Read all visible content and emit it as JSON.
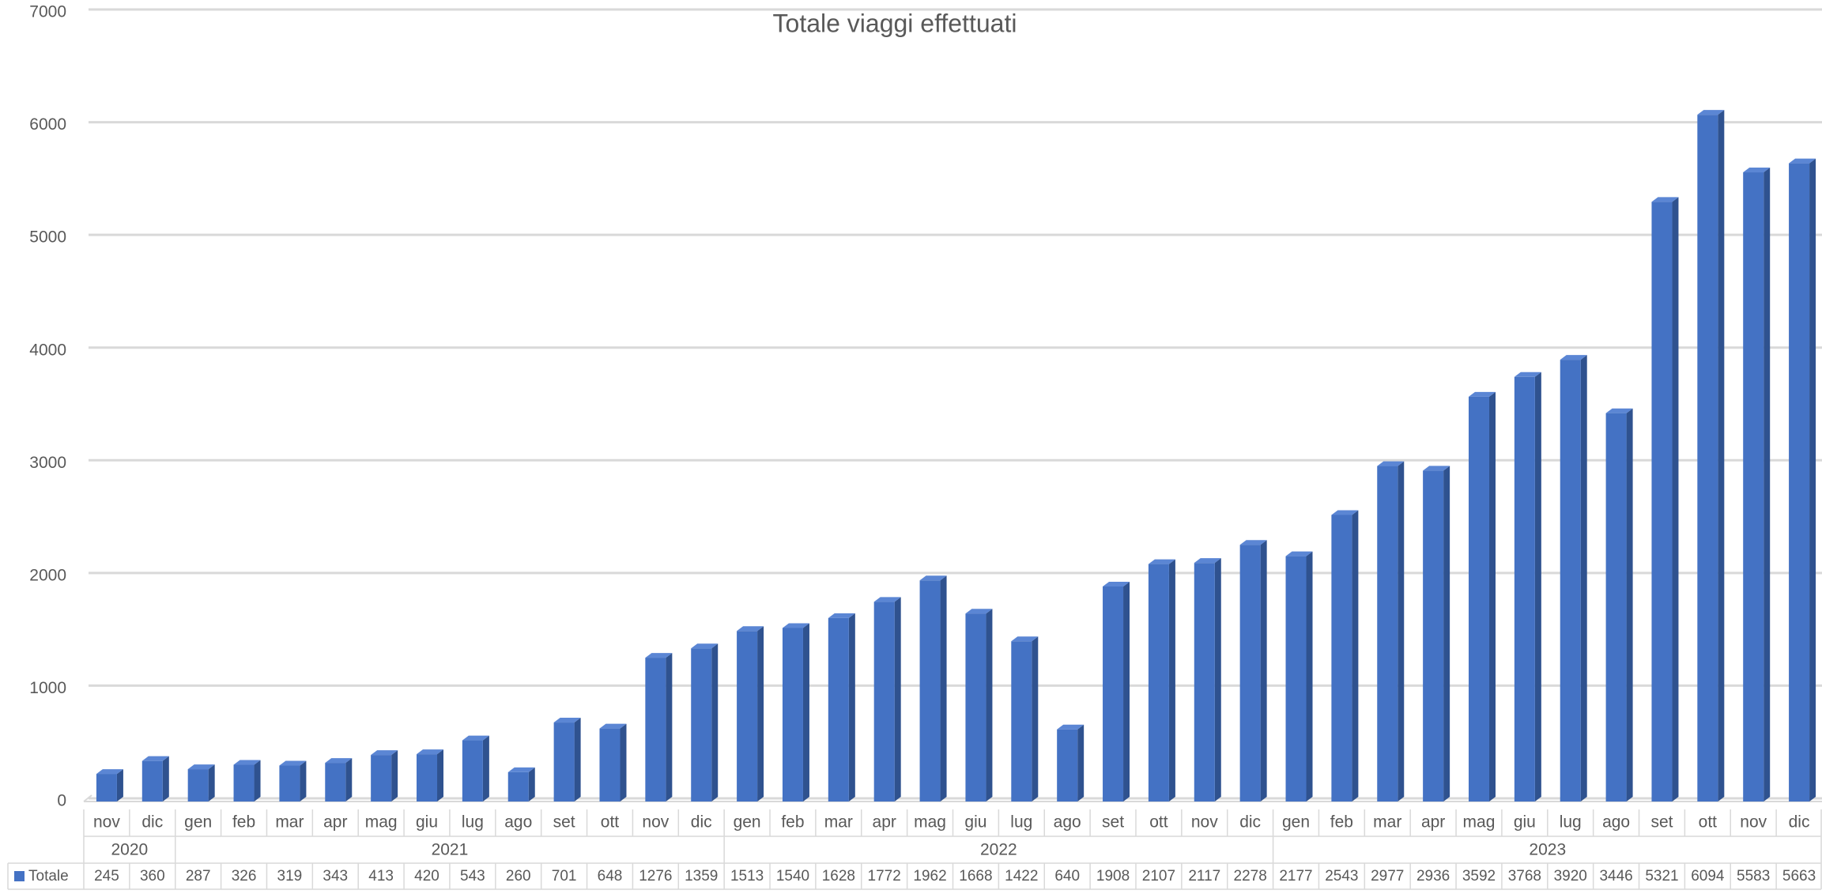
{
  "chart_data": {
    "type": "bar3d",
    "title": "Totale viaggi effettuati",
    "groups": [
      {
        "label": "2020",
        "categories": [
          "nov",
          "dic"
        ]
      },
      {
        "label": "2021",
        "categories": [
          "gen",
          "feb",
          "mar",
          "apr",
          "mag",
          "giu",
          "lug",
          "ago",
          "set",
          "ott",
          "nov",
          "dic"
        ]
      },
      {
        "label": "2022",
        "categories": [
          "gen",
          "feb",
          "mar",
          "apr",
          "mag",
          "giu",
          "lug",
          "ago",
          "set",
          "ott",
          "nov",
          "dic"
        ]
      },
      {
        "label": "2023",
        "categories": [
          "gen",
          "feb",
          "mar",
          "apr",
          "mag",
          "giu",
          "lug",
          "ago",
          "set",
          "ott",
          "nov",
          "dic"
        ]
      }
    ],
    "series": [
      {
        "name": "Totale",
        "color": "#4472c4",
        "values": [
          245,
          360,
          287,
          326,
          319,
          343,
          413,
          420,
          543,
          260,
          701,
          648,
          1276,
          1359,
          1513,
          1540,
          1628,
          1772,
          1962,
          1668,
          1422,
          640,
          1908,
          2107,
          2117,
          2278,
          2177,
          2543,
          2977,
          2936,
          3592,
          3768,
          3920,
          3446,
          5321,
          6094,
          5583,
          5663
        ]
      }
    ],
    "ylim": [
      0,
      7000
    ],
    "yticks": [
      0,
      1000,
      2000,
      3000,
      4000,
      5000,
      6000,
      7000
    ],
    "grid": true,
    "data_table": true
  }
}
